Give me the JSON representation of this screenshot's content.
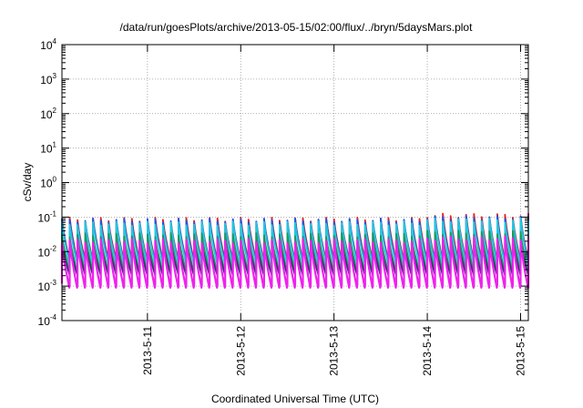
{
  "chart_data": {
    "type": "line",
    "title": "/data/run/goesPlots/archive/2013-05-15/02:00/flux/../bryn/5daysMars.plot",
    "xlabel": "Coordinated Universal Time (UTC)",
    "ylabel": "cSv/day",
    "y_scale": "log",
    "ylim": [
      0.0001,
      10000
    ],
    "y_ticks": [
      {
        "base": "10",
        "exp": "-4",
        "value": 0.0001
      },
      {
        "base": "10",
        "exp": "-3",
        "value": 0.001
      },
      {
        "base": "10",
        "exp": "-2",
        "value": 0.01
      },
      {
        "base": "10",
        "exp": "-1",
        "value": 0.1
      },
      {
        "base": "10",
        "exp": "0",
        "value": 1
      },
      {
        "base": "10",
        "exp": "1",
        "value": 10
      },
      {
        "base": "10",
        "exp": "2",
        "value": 100
      },
      {
        "base": "10",
        "exp": "3",
        "value": 1000
      },
      {
        "base": "10",
        "exp": "4",
        "value": 10000
      }
    ],
    "xlim": [
      "2013-05-10 02:00",
      "2013-05-15 02:00"
    ],
    "x_ticks": [
      "2013-5-11",
      "2013-5-12",
      "2013-5-13",
      "2013-5-14",
      "2013-5-15"
    ],
    "grid": true,
    "legend": "none",
    "cycle_hours": 2,
    "series": [
      {
        "color": "#e8221c",
        "min": 0.006,
        "max": 0.085,
        "max_late": 0.11
      },
      {
        "color": "#2255dd",
        "min": 0.005,
        "max": 0.08,
        "max_late": 0.095
      },
      {
        "color": "#20c8e0",
        "min": 0.0045,
        "max": 0.065,
        "max_late": 0.08
      },
      {
        "color": "#1a9a5a",
        "min": 0.0028,
        "max": 0.03,
        "max_late": 0.035
      },
      {
        "color": "#3a2f7a",
        "min": 0.0022,
        "max": 0.018,
        "max_late": 0.02
      },
      {
        "color": "#ee22ee",
        "min": 0.0009,
        "max": 0.02,
        "max_late": 0.024
      }
    ]
  }
}
